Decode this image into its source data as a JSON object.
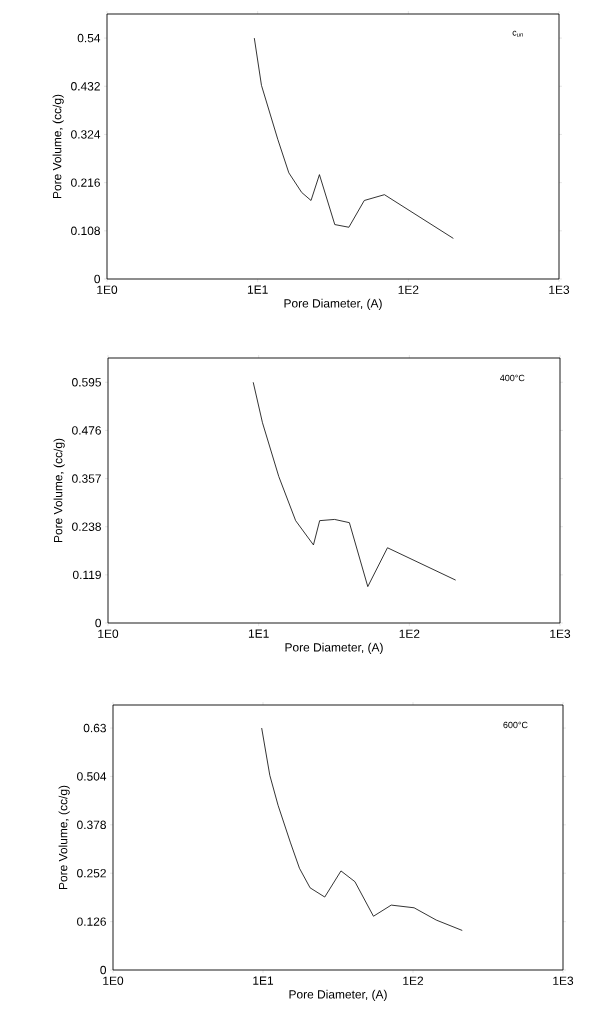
{
  "chart_data": [
    {
      "type": "line",
      "xlabel": "Pore Diameter, (A)",
      "ylabel": "Pore Volume, (cc/g)",
      "annotations": [
        "c$_{un}$"
      ],
      "log": "x",
      "xlim": [
        1,
        1000
      ],
      "ylim": [
        0,
        0.594
      ],
      "xticks": [
        {
          "value": 1,
          "label": "1E0"
        },
        {
          "value": 10,
          "label": "1E1"
        },
        {
          "value": 100,
          "label": "1E2"
        },
        {
          "value": 1000,
          "label": "1E3"
        }
      ],
      "yticks": [
        0,
        0.108,
        0.216,
        0.324,
        0.432,
        0.54
      ],
      "series": [
        {
          "color": "#000000",
          "x": [
            9.5,
            10.6,
            13.6,
            16.1,
            19.6,
            22.6,
            25.7,
            32.5,
            40.3,
            51,
            69.4,
            199
          ],
          "values": [
            0.54,
            0.434,
            0.313,
            0.238,
            0.194,
            0.176,
            0.234,
            0.122,
            0.116,
            0.176,
            0.189,
            0.091
          ]
        }
      ]
    },
    {
      "type": "line",
      "xlabel": "Pore Diameter, (A)",
      "ylabel": "Pore Volume, (cc/g)",
      "annotations": [
        "400°C"
      ],
      "log": "x",
      "xlim": [
        1,
        1000
      ],
      "ylim": [
        0,
        0.655
      ],
      "xticks": [
        {
          "value": 1,
          "label": "1E0"
        },
        {
          "value": 10,
          "label": "1E1"
        },
        {
          "value": 100,
          "label": "1E2"
        },
        {
          "value": 1000,
          "label": "1E3"
        }
      ],
      "yticks": [
        0,
        0.119,
        0.238,
        0.357,
        0.476,
        0.595
      ],
      "series": [
        {
          "color": "#000000",
          "x": [
            9.2,
            10.6,
            13.6,
            17.6,
            23.1,
            25.4,
            31.9,
            40,
            53,
            71.6,
            203
          ],
          "values": [
            0.595,
            0.495,
            0.362,
            0.253,
            0.193,
            0.253,
            0.256,
            0.248,
            0.09,
            0.186,
            0.106
          ]
        }
      ]
    },
    {
      "type": "line",
      "xlabel": "Pore Diameter, (A)",
      "ylabel": "Pore Volume, (cc/g)",
      "annotations": [
        "600°C"
      ],
      "log": "x",
      "xlim": [
        1,
        1000
      ],
      "ylim": [
        0,
        0.69
      ],
      "xticks": [
        {
          "value": 1,
          "label": "1E0"
        },
        {
          "value": 10,
          "label": "1E1"
        },
        {
          "value": 100,
          "label": "1E2"
        },
        {
          "value": 1000,
          "label": "1E3"
        }
      ],
      "yticks": [
        0,
        0.126,
        0.252,
        0.378,
        0.504,
        0.63
      ],
      "series": [
        {
          "color": "#000000",
          "x": [
            9.8,
            11.1,
            12.6,
            15.2,
            17.5,
            20.6,
            25.8,
            33.1,
            41,
            54.5,
            71.6,
            101.7,
            143,
            213
          ],
          "values": [
            0.63,
            0.507,
            0.429,
            0.333,
            0.265,
            0.214,
            0.19,
            0.258,
            0.23,
            0.14,
            0.169,
            0.162,
            0.13,
            0.103
          ]
        }
      ]
    }
  ]
}
